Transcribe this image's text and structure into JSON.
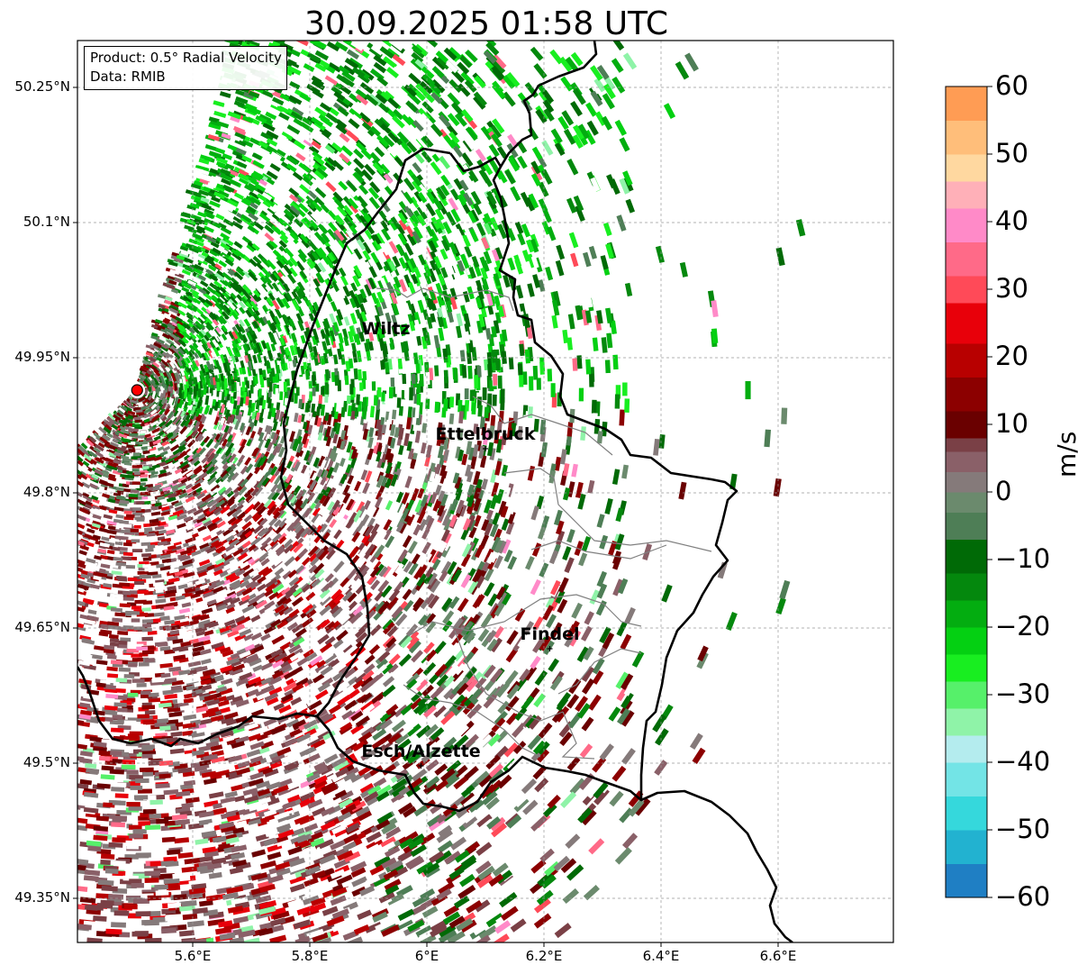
{
  "title": "30.09.2025 01:58 UTC",
  "info_box": {
    "product": "Product: 0.5° Radial Velocity",
    "data_source": "Data: RMIB"
  },
  "map": {
    "lon_range": [
      5.4,
      6.8
    ],
    "lat_range": [
      49.3,
      50.3
    ],
    "gridlines": true,
    "lat_ticks": [
      {
        "value": 50.25,
        "label": "50.25°N"
      },
      {
        "value": 50.1,
        "label": "50.1°N"
      },
      {
        "value": 49.95,
        "label": "49.95°N"
      },
      {
        "value": 49.8,
        "label": "49.8°N"
      },
      {
        "value": 49.65,
        "label": "49.65°N"
      },
      {
        "value": 49.5,
        "label": "49.5°N"
      },
      {
        "value": 49.35,
        "label": "49.35°N"
      }
    ],
    "lon_ticks": [
      {
        "value": 5.6,
        "label": "5.6°E"
      },
      {
        "value": 5.8,
        "label": "5.8°E"
      },
      {
        "value": 6.0,
        "label": "6°E"
      },
      {
        "value": 6.2,
        "label": "6.2°E"
      },
      {
        "value": 6.4,
        "label": "6.4°E"
      },
      {
        "value": 6.6,
        "label": "6.6°E"
      }
    ],
    "radar_site": {
      "lon": 5.505,
      "lat": 49.914,
      "color": "#ff0000"
    },
    "places": [
      {
        "name": "Wiltz",
        "lon": 5.93,
        "lat": 49.966,
        "marker": false
      },
      {
        "name": "Ettelbruck",
        "lon": 6.1,
        "lat": 49.849,
        "marker": true
      },
      {
        "name": "Findel",
        "lon": 6.21,
        "lat": 49.627,
        "marker": true
      },
      {
        "name": "Esch/Alzette",
        "lon": 5.99,
        "lat": 49.497,
        "marker": true
      }
    ]
  },
  "colorbar": {
    "label": "m/s",
    "min": -60,
    "max": 60,
    "ticks": [
      {
        "value": 60,
        "label": "60"
      },
      {
        "value": 50,
        "label": "50"
      },
      {
        "value": 40,
        "label": "40"
      },
      {
        "value": 30,
        "label": "30"
      },
      {
        "value": 20,
        "label": "20"
      },
      {
        "value": 10,
        "label": "10"
      },
      {
        "value": 0,
        "label": "0"
      },
      {
        "value": -10,
        "label": "−10"
      },
      {
        "value": -20,
        "label": "−20"
      },
      {
        "value": -30,
        "label": "−30"
      },
      {
        "value": -40,
        "label": "−40"
      },
      {
        "value": -50,
        "label": "−50"
      },
      {
        "value": -60,
        "label": "−60"
      }
    ],
    "bands": [
      {
        "from": -60,
        "to": -55,
        "color": "#1f7fc4"
      },
      {
        "from": -55,
        "to": -50,
        "color": "#22b2d0"
      },
      {
        "from": -50,
        "to": -45,
        "color": "#35d8dc"
      },
      {
        "from": -45,
        "to": -40,
        "color": "#73e4e6"
      },
      {
        "from": -40,
        "to": -36,
        "color": "#b4ecee"
      },
      {
        "from": -36,
        "to": -32,
        "color": "#8ff3a8"
      },
      {
        "from": -32,
        "to": -28,
        "color": "#56f06a"
      },
      {
        "from": -28,
        "to": -24,
        "color": "#18ee20"
      },
      {
        "from": -24,
        "to": -20,
        "color": "#04d012"
      },
      {
        "from": -20,
        "to": -16,
        "color": "#03ad10"
      },
      {
        "from": -16,
        "to": -12,
        "color": "#04880d"
      },
      {
        "from": -12,
        "to": -7,
        "color": "#006a06"
      },
      {
        "from": -7,
        "to": -3,
        "color": "#4e7e56"
      },
      {
        "from": -3,
        "to": 0,
        "color": "#6b8a6d"
      },
      {
        "from": 0,
        "to": 3,
        "color": "#857a7a"
      },
      {
        "from": 3,
        "to": 6,
        "color": "#8a6068"
      },
      {
        "from": 6,
        "to": 8,
        "color": "#7a4046"
      },
      {
        "from": 8,
        "to": 12,
        "color": "#6a0000"
      },
      {
        "from": 12,
        "to": 17,
        "color": "#8c0000"
      },
      {
        "from": 17,
        "to": 22,
        "color": "#b80000"
      },
      {
        "from": 22,
        "to": 28,
        "color": "#e8000a"
      },
      {
        "from": 28,
        "to": 32,
        "color": "#ff4a58"
      },
      {
        "from": 32,
        "to": 37,
        "color": "#ff6a88"
      },
      {
        "from": 37,
        "to": 42,
        "color": "#ff8ac8"
      },
      {
        "from": 42,
        "to": 46,
        "color": "#ffb0b8"
      },
      {
        "from": 46,
        "to": 50,
        "color": "#ffd8a0"
      },
      {
        "from": 50,
        "to": 55,
        "color": "#ffbe7a"
      },
      {
        "from": 55,
        "to": 60,
        "color": "#ff9c54"
      }
    ]
  }
}
